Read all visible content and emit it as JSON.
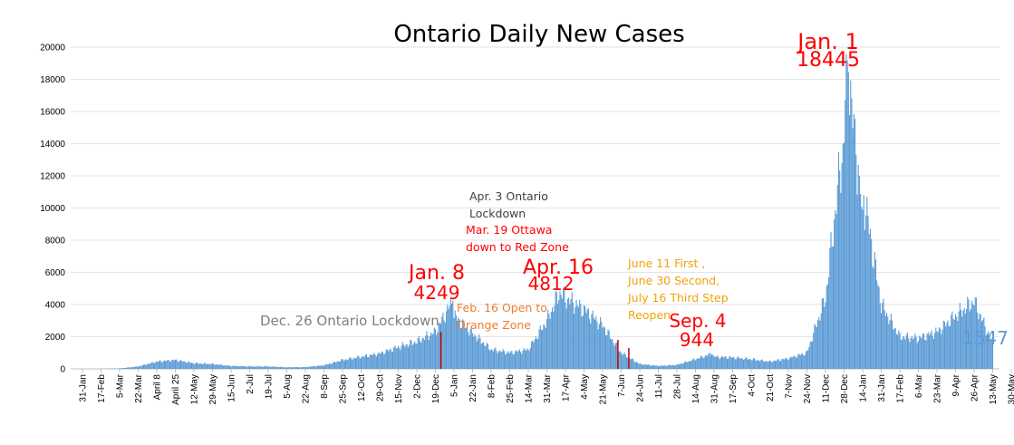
{
  "chart_data": {
    "type": "bar",
    "title": "Ontario Daily New Cases",
    "xlabel": "",
    "ylabel": "",
    "ylim": [
      0,
      20000
    ],
    "yticks": [
      "0",
      "2000",
      "4000",
      "6000",
      "8000",
      "10000",
      "12000",
      "14000",
      "16000",
      "18000",
      "20000"
    ],
    "grid": true,
    "legend": "none",
    "bar_color": "#5b9bd5",
    "x_tick_labels": [
      "31-Jan",
      "17-Feb",
      "5-Mar",
      "22-Mar",
      "April 8",
      "April 25",
      "12-May",
      "29-May",
      "15-Jun",
      "2-Jul",
      "19-Jul",
      "5-Aug",
      "22-Aug",
      "8-Sep",
      "25-Sep",
      "12-Oct",
      "29-Oct",
      "15-Nov",
      "2-Dec",
      "19-Dec",
      "5-Jan",
      "22-Jan",
      "8-Feb",
      "25-Feb",
      "14-Mar",
      "31-Mar",
      "17-Apr",
      "4-May",
      "21-May",
      "7-Jun",
      "24-Jun",
      "11-Jul",
      "28-Jul",
      "14-Aug",
      "31-Aug",
      "17-Sep",
      "4-Oct",
      "21-Oct",
      "7-Nov",
      "24-Nov",
      "11-Dec",
      "28-Dec",
      "14-Jan",
      "31-Jan",
      "17-Feb",
      "6-Mar",
      "23-Mar",
      "9-Apr",
      "26-Apr",
      "13-May",
      "30-May"
    ],
    "tick_step_days": 17,
    "days_shown": 839,
    "values_every_17_days": [
      0,
      2,
      30,
      150,
      450,
      550,
      350,
      300,
      180,
      150,
      150,
      100,
      110,
      220,
      550,
      750,
      950,
      1350,
      1700,
      2300,
      3300,
      2200,
      1200,
      1000,
      1200,
      3000,
      4400,
      3700,
      2700,
      1000,
      300,
      180,
      250,
      600,
      750,
      700,
      600,
      450,
      650,
      1000,
      4400,
      14500,
      9000,
      4000,
      2000,
      1900,
      2300,
      3300,
      4200,
      1547
    ],
    "annotations": [
      {
        "text": "Jan. 1",
        "color": "#ff0000"
      },
      {
        "text": "18445",
        "color": "#ff0000"
      },
      {
        "text": "Jan. 8",
        "color": "#ff0000"
      },
      {
        "text": "4249",
        "color": "#ff0000"
      },
      {
        "text": "Apr. 16",
        "color": "#ff0000"
      },
      {
        "text": "4812",
        "color": "#ff0000"
      },
      {
        "text": "Sep. 4",
        "color": "#ff0000"
      },
      {
        "text": "944",
        "color": "#ff0000"
      },
      {
        "text": "Dec. 26 Ontario Lockdown",
        "color": "#7f7f7f"
      },
      {
        "text": "Apr. 3 Ontario",
        "color": "#404040"
      },
      {
        "text": "Lockdown",
        "color": "#404040"
      },
      {
        "text": "Mar. 19 Ottawa",
        "color": "#ff0000"
      },
      {
        "text": "down to Red Zone",
        "color": "#ff0000"
      },
      {
        "text": "Feb. 16 Open to",
        "color": "#ed7d31"
      },
      {
        "text": "Orange Zone",
        "color": "#ed7d31"
      },
      {
        "text": "June 11 First ,",
        "color": "#f0a30a"
      },
      {
        "text": "June 30 Second,",
        "color": "#f0a30a"
      },
      {
        "text": "July 16 Third Step",
        "color": "#f0a30a"
      },
      {
        "text": "Reopen",
        "color": "#f0a30a"
      },
      {
        "text": "1547",
        "color": "#5b9bd5"
      }
    ]
  }
}
